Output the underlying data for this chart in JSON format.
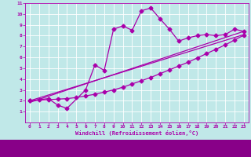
{
  "line1_x": [
    0,
    1,
    2,
    3,
    4,
    6,
    7,
    8,
    9,
    10,
    11,
    12,
    13,
    14,
    15,
    16,
    17,
    18,
    19,
    20,
    21,
    22,
    23
  ],
  "line1_y": [
    2.0,
    2.1,
    2.2,
    1.6,
    1.3,
    3.0,
    5.3,
    4.8,
    8.6,
    8.9,
    8.5,
    10.3,
    10.55,
    9.55,
    8.6,
    7.5,
    7.8,
    8.0,
    8.1,
    8.0,
    8.1,
    8.6,
    8.4
  ],
  "line2_x": [
    0,
    2,
    3,
    4,
    5,
    6,
    7,
    8,
    9,
    10,
    11,
    12,
    13,
    14,
    15,
    16,
    17,
    18,
    19,
    20,
    21,
    22,
    23
  ],
  "line2_y": [
    2.0,
    2.1,
    2.15,
    2.2,
    2.3,
    2.45,
    2.6,
    2.8,
    3.0,
    3.25,
    3.55,
    3.85,
    4.15,
    4.5,
    4.85,
    5.2,
    5.55,
    5.95,
    6.35,
    6.75,
    7.15,
    7.6,
    8.05
  ],
  "line3_x": [
    0,
    23
  ],
  "line3_y": [
    2.0,
    8.1
  ],
  "line4_x": [
    0,
    23
  ],
  "line4_y": [
    1.85,
    8.4
  ],
  "color": "#aa00aa",
  "bg_color": "#c0e8e8",
  "grid_color": "#ffffff",
  "xlabel": "Windchill (Refroidissement éolien,°C)",
  "xlim": [
    -0.5,
    23.5
  ],
  "ylim": [
    0,
    11
  ],
  "xticks": [
    0,
    1,
    2,
    3,
    4,
    5,
    6,
    7,
    8,
    9,
    10,
    11,
    12,
    13,
    14,
    15,
    16,
    17,
    18,
    19,
    20,
    21,
    22,
    23
  ],
  "yticks": [
    1,
    2,
    3,
    4,
    5,
    6,
    7,
    8,
    9,
    10,
    11
  ],
  "marker": "D",
  "markersize": 2.5,
  "linewidth": 0.9
}
